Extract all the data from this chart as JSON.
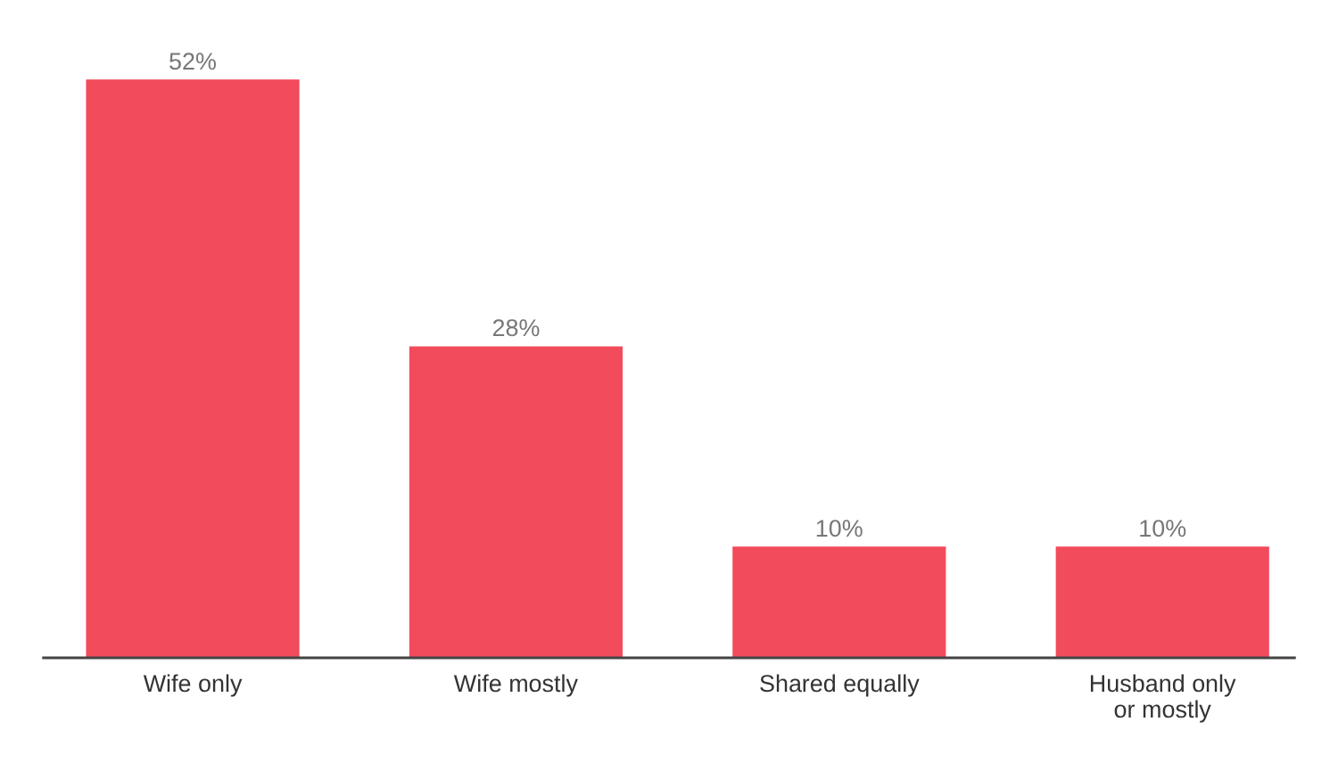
{
  "chart_data": {
    "type": "bar",
    "categories": [
      "Wife only",
      "Wife mostly",
      "Shared equally",
      "Husband only or mostly"
    ],
    "values": [
      52,
      28,
      10,
      10
    ],
    "color": "#f24b5c",
    "value_labels": [
      "52%",
      "28%",
      "10%",
      "10%"
    ]
  }
}
